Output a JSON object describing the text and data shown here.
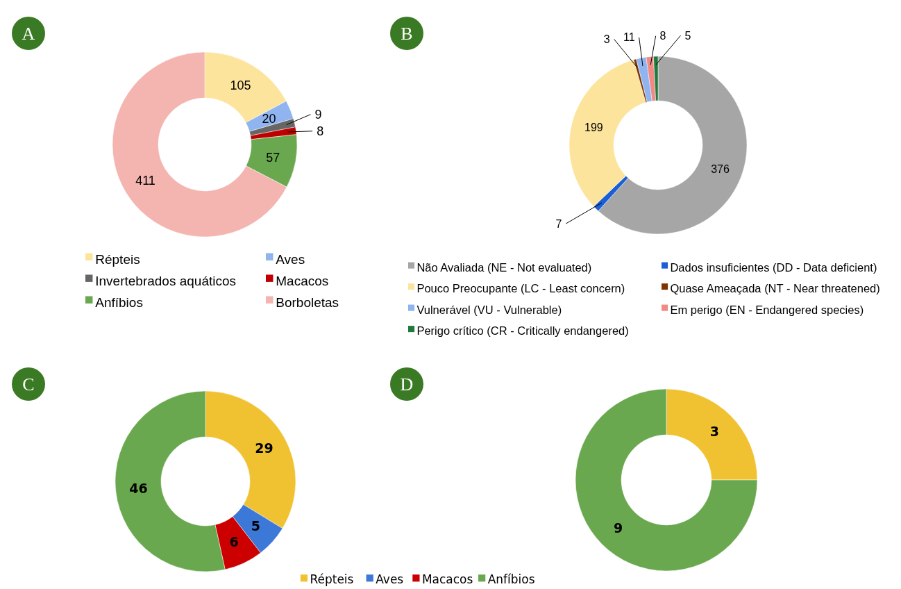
{
  "chart_data": [
    {
      "type": "donut",
      "annotations": [
        "A"
      ],
      "categories": [
        "Répteis",
        "Aves",
        "Invertebrados aquáticos",
        "Macacos",
        "Anfíbios",
        "Borboletas"
      ],
      "values": [
        105,
        20,
        9,
        8,
        57,
        411
      ],
      "colors": [
        "#fde49c",
        "#8fb4f0",
        "#666666",
        "#c00000",
        "#6aa84f",
        "#f4b5b0"
      ],
      "data_labels": true,
      "legend": "bottom"
    },
    {
      "type": "donut",
      "annotations": [
        "B"
      ],
      "categories": [
        "Não Avaliada (NE - Not evaluated)",
        "Dados insuficientes (DD - Data deficient)",
        "Pouco Preocupante (LC - Least concern)",
        "Quase Ameaçada (NT - Near threatened)",
        "Vulnerável (VU - Vulnerable)",
        "Em perigo (EN - Endangered species)",
        "Perigo crítico (CR - Critically endangered)"
      ],
      "values": [
        376,
        7,
        199,
        3,
        11,
        8,
        5
      ],
      "colors": [
        "#a6a6a6",
        "#1a5fd6",
        "#fde49c",
        "#7f3300",
        "#8fb4f0",
        "#f08a84",
        "#217a3c"
      ],
      "data_labels": true,
      "legend": "bottom"
    },
    {
      "type": "donut",
      "annotations": [
        "C"
      ],
      "categories": [
        "Répteis",
        "Aves",
        "Macacos",
        "Anfíbios"
      ],
      "values": [
        29,
        5,
        6,
        46
      ],
      "colors": [
        "#f0c232",
        "#3c78d8",
        "#cc0000",
        "#6aa84f"
      ],
      "data_labels": true,
      "legend": "bottom"
    },
    {
      "type": "donut",
      "annotations": [
        "D"
      ],
      "categories": [
        null,
        null
      ],
      "values": [
        3,
        9
      ],
      "colors": [
        "#f0c232",
        "#6aa84f"
      ],
      "data_labels": true
    }
  ]
}
